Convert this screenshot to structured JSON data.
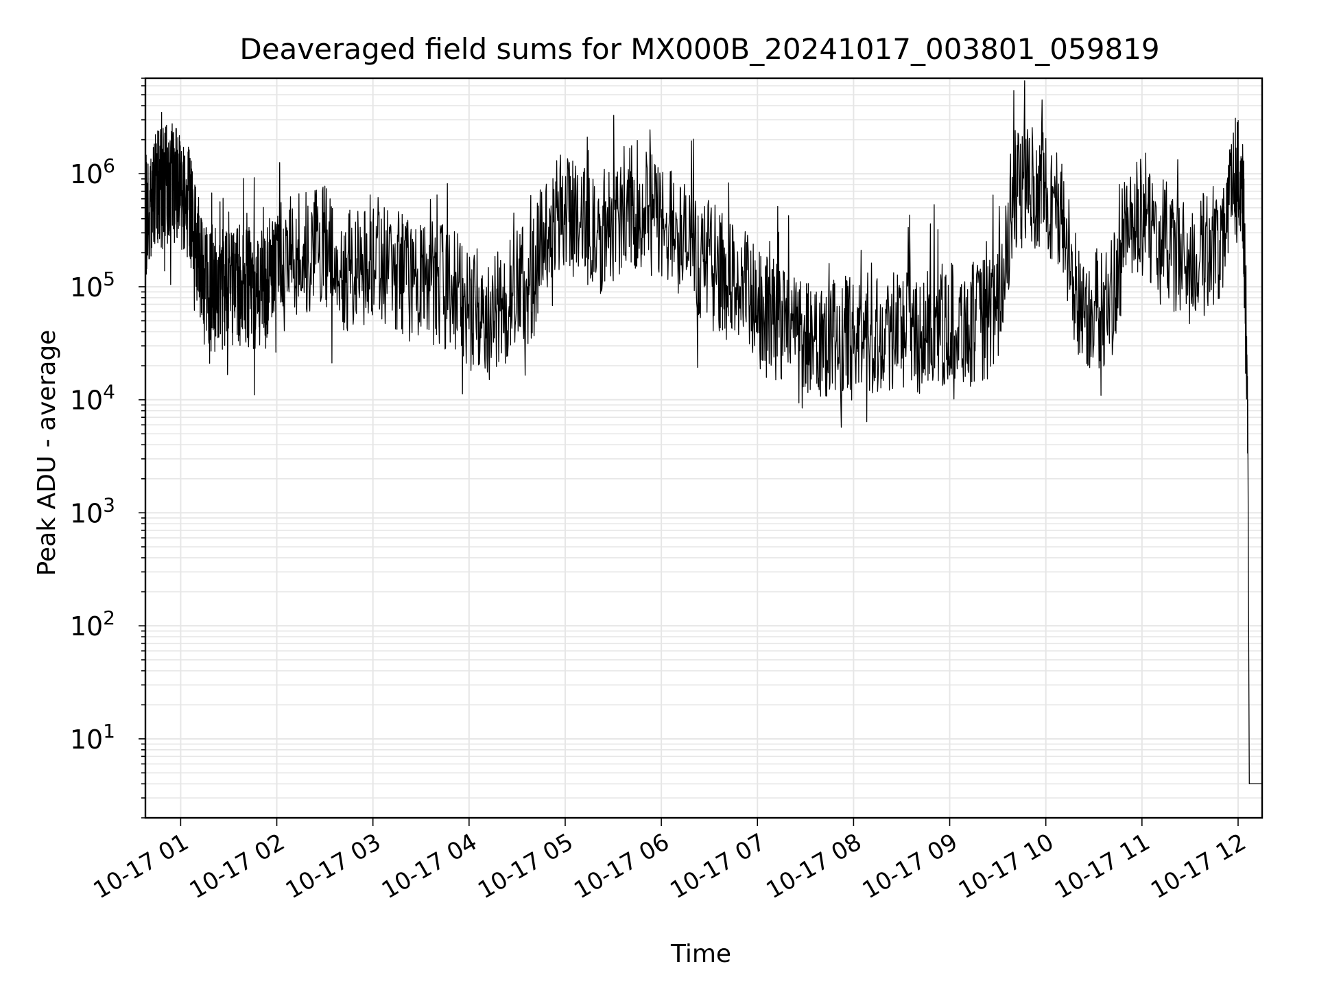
{
  "chart_data": {
    "type": "line",
    "title": "Deaveraged field sums for MX000B_20241017_003801_059819",
    "xlabel": "Time",
    "ylabel": "Peak ADU - average",
    "yscale": "log",
    "xlim": [
      "2024-10-17 00:38",
      "2024-10-17 12:15"
    ],
    "ylim": [
      2,
      7000000
    ],
    "xticks": [
      "10-17 01",
      "10-17 02",
      "10-17 03",
      "10-17 04",
      "10-17 05",
      "10-17 06",
      "10-17 07",
      "10-17 08",
      "10-17 09",
      "10-17 10",
      "10-17 11",
      "10-17 12"
    ],
    "yticks": [
      {
        "base": "10",
        "exp": "1"
      },
      {
        "base": "10",
        "exp": "2"
      },
      {
        "base": "10",
        "exp": "3"
      },
      {
        "base": "10",
        "exp": "4"
      },
      {
        "base": "10",
        "exp": "5"
      },
      {
        "base": "10",
        "exp": "6"
      }
    ],
    "grid": true,
    "line_color": "#000000",
    "grid_color": "#e6e6e6",
    "series": [
      {
        "x": [
          "00:38",
          "00:42",
          "00:46",
          "00:50",
          "00:54",
          "00:58",
          "01:02",
          "01:06",
          "01:10",
          "01:15",
          "01:20",
          "01:25",
          "01:30",
          "01:35",
          "01:40",
          "01:45",
          "01:50",
          "01:55",
          "02:00",
          "02:10",
          "02:20",
          "02:30",
          "02:40",
          "02:50",
          "03:00",
          "03:10",
          "03:20",
          "03:30",
          "03:40",
          "03:50",
          "04:00",
          "04:10",
          "04:20",
          "04:30",
          "04:40",
          "04:50",
          "05:00",
          "05:10",
          "05:20",
          "05:30",
          "05:40",
          "05:50",
          "06:00",
          "06:10",
          "06:20",
          "06:30",
          "06:40",
          "06:50",
          "07:00",
          "07:10",
          "07:20",
          "07:30",
          "07:40",
          "07:50",
          "08:00",
          "08:10",
          "08:20",
          "08:30",
          "08:40",
          "08:50",
          "09:00",
          "09:10",
          "09:20",
          "09:30",
          "09:40",
          "09:50",
          "10:00",
          "10:10",
          "10:20",
          "10:30",
          "10:40",
          "10:50",
          "11:00",
          "11:10",
          "11:20",
          "11:30",
          "11:40",
          "11:50",
          "11:58",
          "12:03",
          "12:06",
          "12:07",
          "12:10",
          "12:15"
        ],
        "y": [
          400000,
          600000,
          700000,
          750000,
          800000,
          900000,
          700000,
          500000,
          200000,
          120000,
          90000,
          100000,
          90000,
          110000,
          100000,
          90000,
          110000,
          130000,
          200000,
          180000,
          200000,
          220000,
          150000,
          130000,
          200000,
          150000,
          120000,
          100000,
          110000,
          90000,
          70000,
          60000,
          70000,
          90000,
          120000,
          400000,
          500000,
          350000,
          300000,
          400000,
          500000,
          450000,
          400000,
          300000,
          200000,
          150000,
          120000,
          100000,
          60000,
          50000,
          45000,
          40000,
          38000,
          35000,
          35000,
          40000,
          40000,
          45000,
          40000,
          40000,
          50000,
          45000,
          50000,
          60000,
          700000,
          800000,
          700000,
          400000,
          70000,
          60000,
          70000,
          300000,
          400000,
          300000,
          200000,
          150000,
          200000,
          300000,
          900000,
          800000,
          10000,
          4,
          4,
          4
        ]
      }
    ]
  }
}
